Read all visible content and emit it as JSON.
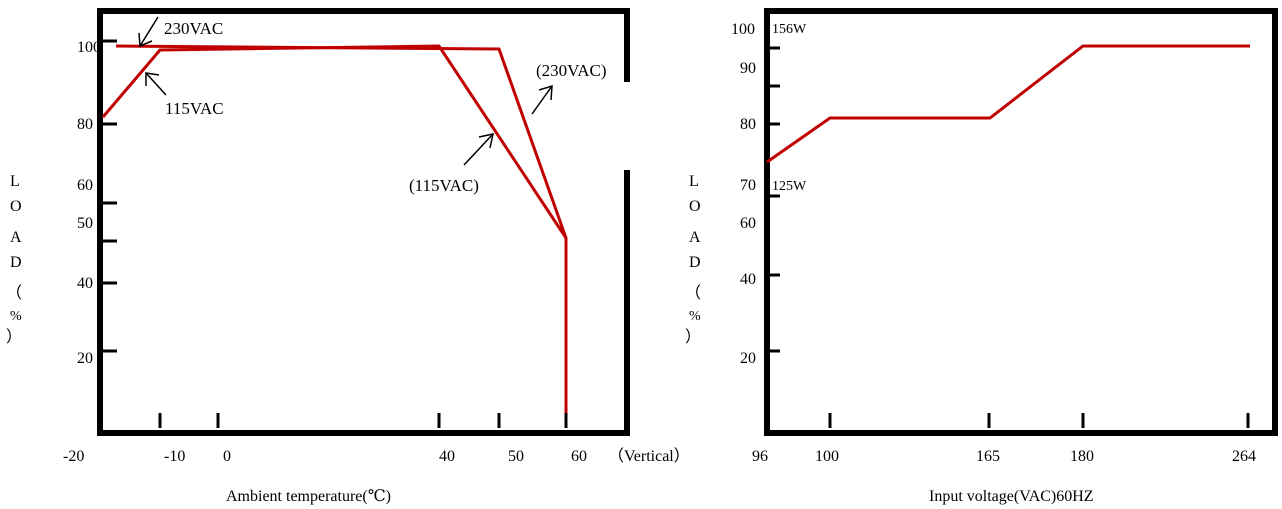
{
  "chart_data": [
    {
      "type": "line",
      "xlabel": "Ambient temperature(℃)",
      "ylabel_chars": [
        "L",
        "O",
        "A",
        "D",
        "（",
        "%",
        "）"
      ],
      "x_ticks": [
        "-20",
        "-10",
        "0",
        "40",
        "50",
        "60",
        "（Vertical）"
      ],
      "x_tick_values": [
        -20,
        -10,
        0,
        40,
        50,
        60
      ],
      "y_ticks": [
        "100",
        "80",
        "60",
        "50",
        "40",
        "20"
      ],
      "y_tick_values": [
        100,
        80,
        60,
        50,
        40,
        20
      ],
      "series": [
        {
          "name": "230VAC",
          "x": [
            -20,
            40,
            50,
            60,
            60
          ],
          "y": [
            100,
            100,
            100,
            50,
            0
          ]
        },
        {
          "name": "115VAC",
          "x": [
            -20,
            -12,
            40,
            60
          ],
          "y": [
            80,
            97,
            100,
            50
          ]
        }
      ],
      "annotations": [
        {
          "text": "230VAC",
          "series": "230VAC"
        },
        {
          "text": "115VAC",
          "series": "115VAC"
        },
        {
          "text": "(230VAC)",
          "series": "230VAC"
        },
        {
          "text": "(115VAC)",
          "series": "115VAC"
        }
      ],
      "line_color": "#c00000",
      "grid": false
    },
    {
      "type": "line",
      "xlabel": "Input voltage(VAC)60HZ",
      "ylabel_chars": [
        "L",
        "O",
        "A",
        "D",
        "（",
        "%",
        "）"
      ],
      "x_ticks": [
        "96",
        "100",
        "165",
        "180",
        "264"
      ],
      "x_tick_values": [
        96,
        100,
        165,
        180,
        264
      ],
      "y_ticks": [
        "100",
        "90",
        "80",
        "70",
        "60",
        "40",
        "20"
      ],
      "y_tick_values": [
        100,
        90,
        80,
        70,
        60,
        40,
        20
      ],
      "series": [
        {
          "x": [
            96,
            100,
            165,
            180,
            264
          ],
          "y": [
            75,
            80,
            80,
            100,
            100
          ]
        }
      ],
      "annotations": [
        {
          "text": "156W"
        },
        {
          "text": "125W"
        }
      ],
      "line_color": "#c00000",
      "grid": false
    }
  ]
}
